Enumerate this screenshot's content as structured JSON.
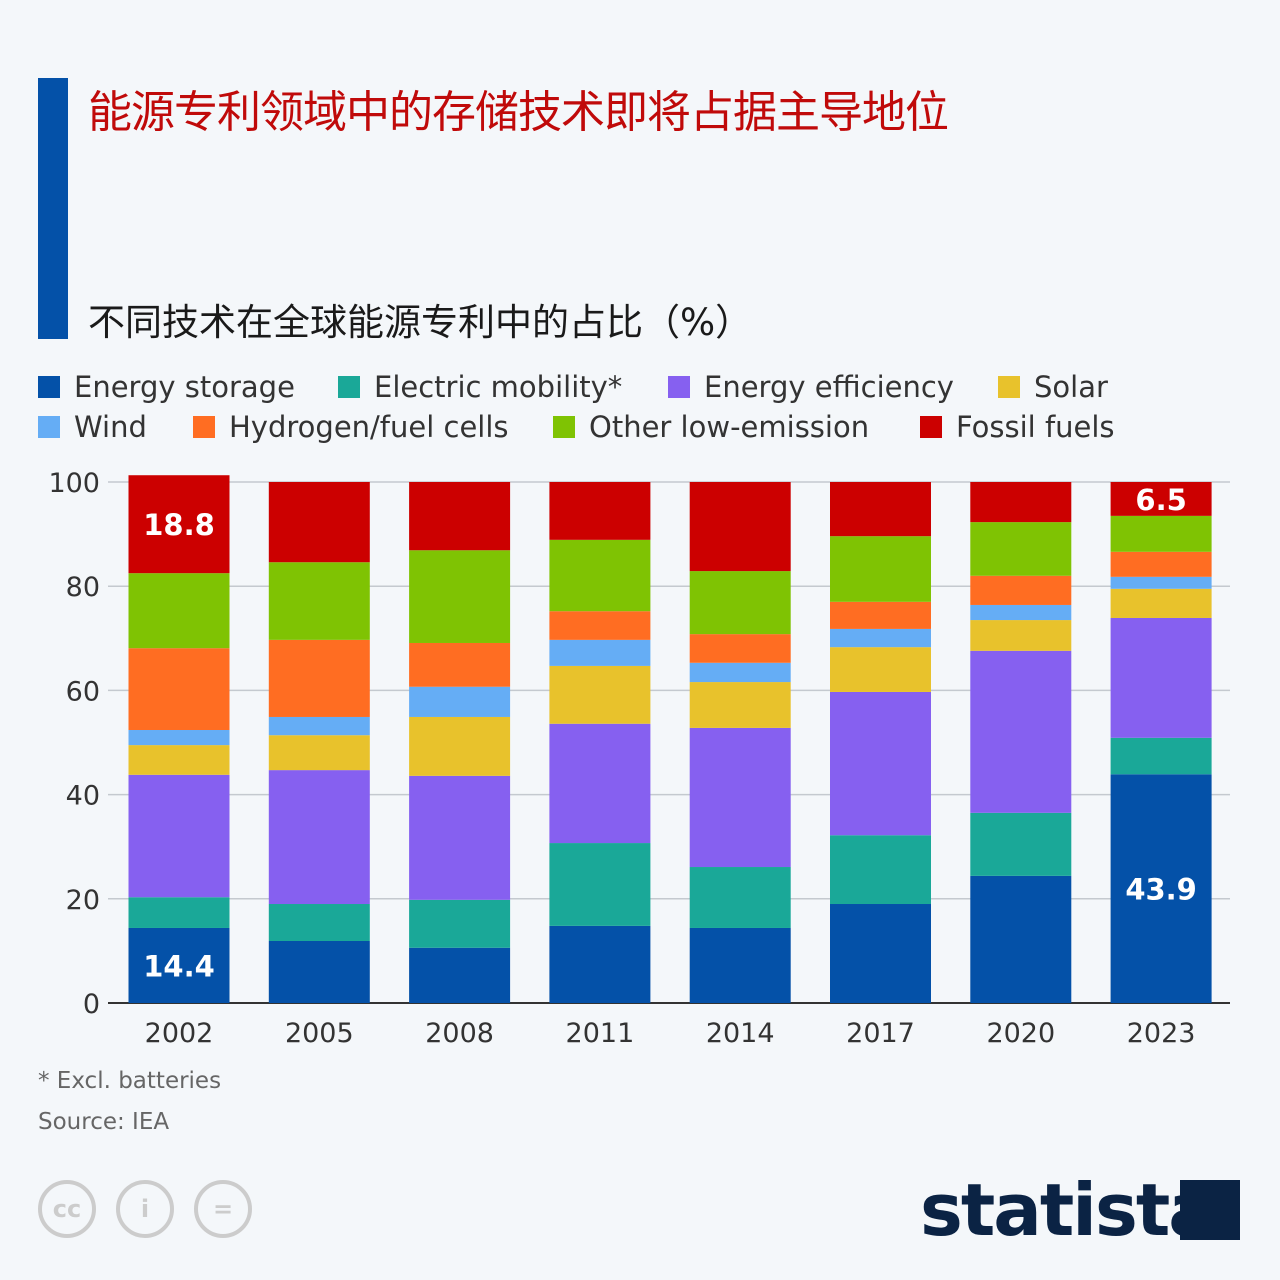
{
  "title": "能源专利领域中的存储技术即将占据主导地位",
  "subtitle": "不同技术在全球能源专利中的占比（%）",
  "footnote": "* Excl. batteries",
  "source": "Source: IEA",
  "brand": "statista",
  "chart_data": {
    "type": "stacked-bar",
    "categories": [
      "2002",
      "2005",
      "2008",
      "2011",
      "2014",
      "2017",
      "2020",
      "2023"
    ],
    "ylim": [
      0,
      100
    ],
    "yticks": [
      "0",
      "20",
      "40",
      "60",
      "80",
      "100"
    ],
    "grid": true,
    "legend_position": "top",
    "series": [
      {
        "name": "Energy storage",
        "color": "#0451a8",
        "values": [
          14.4,
          11.9,
          10.6,
          14.8,
          14.4,
          19.0,
          24.4,
          43.9
        ]
      },
      {
        "name": "Electric mobility*",
        "color": "#1aa898",
        "values": [
          5.9,
          7.1,
          9.2,
          15.9,
          11.7,
          13.2,
          12.1,
          7.0
        ]
      },
      {
        "name": "Energy efficiency",
        "color": "#8660f0",
        "values": [
          23.5,
          25.7,
          23.8,
          22.9,
          26.7,
          27.5,
          31.1,
          23.0
        ]
      },
      {
        "name": "Solar",
        "color": "#e8c22c",
        "values": [
          5.7,
          6.7,
          11.3,
          11.1,
          8.8,
          8.6,
          5.9,
          5.6
        ]
      },
      {
        "name": "Wind",
        "color": "#65adf5",
        "values": [
          2.9,
          3.5,
          5.8,
          5.0,
          3.7,
          3.5,
          2.9,
          2.3
        ]
      },
      {
        "name": "Hydrogen/fuel cells",
        "color": "#ff6d22",
        "values": [
          15.7,
          14.8,
          8.4,
          5.5,
          5.5,
          5.2,
          5.6,
          4.8
        ]
      },
      {
        "name": "Other low-emission",
        "color": "#7fc303",
        "values": [
          14.4,
          14.9,
          17.8,
          13.7,
          12.1,
          12.6,
          10.3,
          6.9
        ]
      },
      {
        "name": "Fossil fuels",
        "color": "#cc0000",
        "values": [
          18.8,
          15.4,
          13.1,
          11.1,
          17.1,
          10.4,
          7.7,
          6.5
        ]
      }
    ],
    "data_labels": [
      {
        "series": "Energy storage",
        "category": "2002",
        "text": "14.4"
      },
      {
        "series": "Fossil fuels",
        "category": "2002",
        "text": "18.8"
      },
      {
        "series": "Energy storage",
        "category": "2023",
        "text": "43.9"
      },
      {
        "series": "Fossil fuels",
        "category": "2023",
        "text": "6.5"
      }
    ]
  }
}
